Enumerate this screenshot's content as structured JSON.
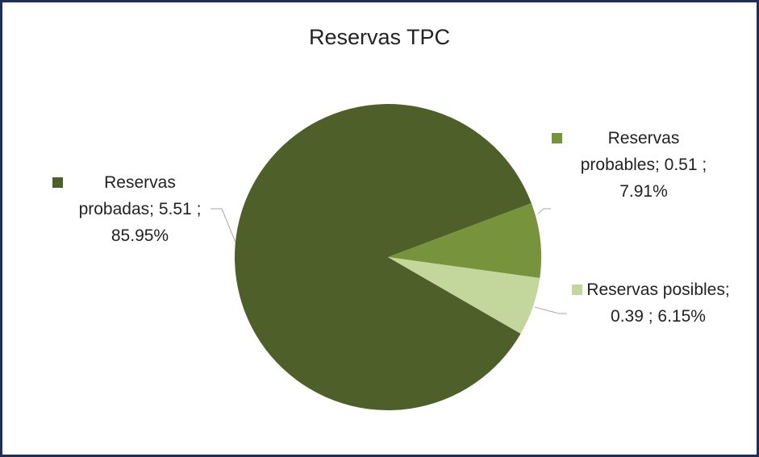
{
  "chart_data": {
    "type": "pie",
    "title": "Reservas TPC",
    "categories": [
      "Reservas probadas",
      "Reservas probables",
      "Reservas posibles"
    ],
    "values": [
      5.51,
      0.51,
      0.39
    ],
    "percentages": [
      {
        "value": 85.95,
        "label": "85.95%"
      },
      {
        "value": 7.91,
        "label": "7.91%"
      },
      {
        "value": 6.15,
        "label": "6.15%"
      }
    ],
    "label_separator": ";",
    "colors": [
      "#4e5f2a",
      "#77933c",
      "#c3d69b"
    ]
  }
}
